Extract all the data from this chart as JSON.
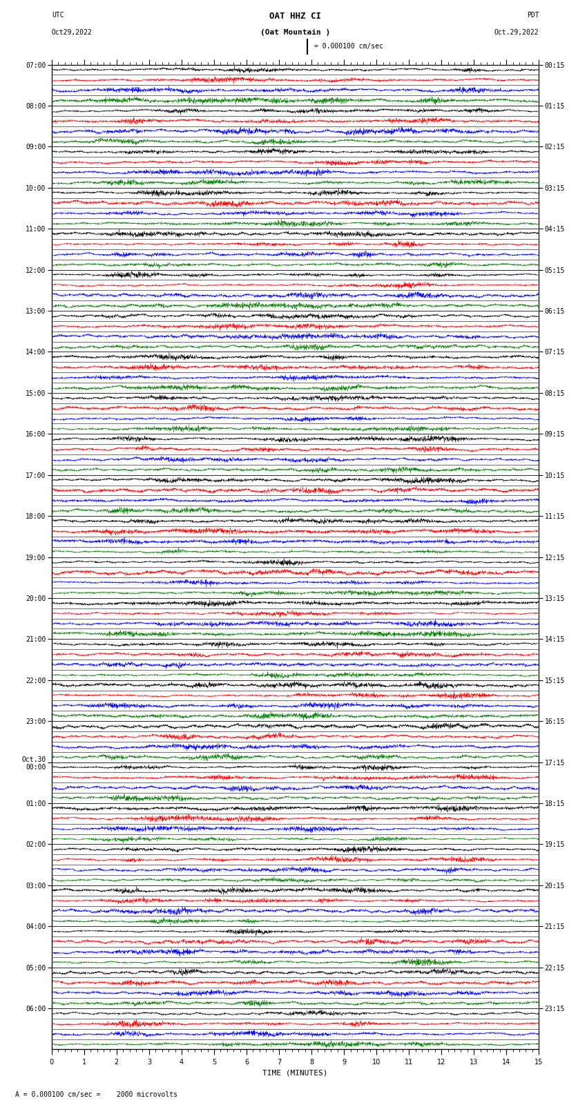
{
  "title_line1": "OAT HHZ CI",
  "title_line2": "(Oat Mountain )",
  "scale_text": "= 0.000100 cm/sec",
  "left_label": "UTC",
  "left_date": "Oct29,2022",
  "right_label": "PDT",
  "right_date": "Oct.29,2022",
  "bottom_label": "TIME (MINUTES)",
  "scale_bottom": "A = 0.000100 cm/sec =    2000 microvolts",
  "xlabel_ticks": [
    0,
    1,
    2,
    3,
    4,
    5,
    6,
    7,
    8,
    9,
    10,
    11,
    12,
    13,
    14,
    15
  ],
  "left_times": [
    "07:00",
    "08:00",
    "09:00",
    "10:00",
    "11:00",
    "12:00",
    "13:00",
    "14:00",
    "15:00",
    "16:00",
    "17:00",
    "18:00",
    "19:00",
    "20:00",
    "21:00",
    "22:00",
    "23:00",
    "Oct.30\n00:00",
    "01:00",
    "02:00",
    "03:00",
    "04:00",
    "05:00",
    "06:00"
  ],
  "right_times": [
    "00:15",
    "01:15",
    "02:15",
    "03:15",
    "04:15",
    "05:15",
    "06:15",
    "07:15",
    "08:15",
    "09:15",
    "10:15",
    "11:15",
    "12:15",
    "13:15",
    "14:15",
    "15:15",
    "16:15",
    "17:15",
    "18:15",
    "19:15",
    "20:15",
    "21:15",
    "22:15",
    "23:15"
  ],
  "colors": [
    "black",
    "red",
    "blue",
    "green"
  ],
  "bg_color": "white",
  "fig_width": 8.5,
  "fig_height": 16.13,
  "dpi": 100,
  "num_rows": 24,
  "traces_per_row": 4,
  "minutes": 15,
  "points_per_minute": 200,
  "amplitude_scale": 0.42,
  "font_size": 7,
  "title_font_size": 9
}
